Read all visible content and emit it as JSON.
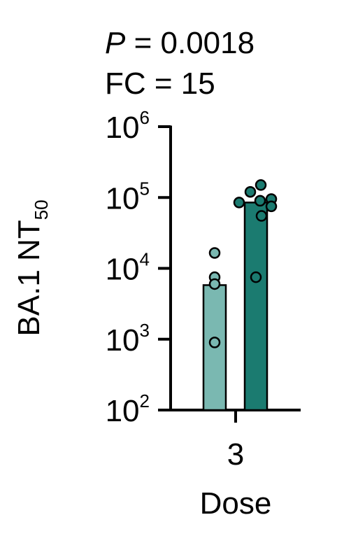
{
  "annotations": {
    "p_label": "P",
    "p_rest": "= 0.0018",
    "fc_text": "FC = 15"
  },
  "chart_data": {
    "type": "bar",
    "title": "",
    "ylabel_main": "BA.1 NT",
    "ylabel_sub": "50",
    "xlabel": "Dose",
    "categories": [
      "3"
    ],
    "y_scale": "log",
    "ylim": [
      100,
      1000000
    ],
    "y_ticks": [
      {
        "base": "10",
        "exp": "2",
        "value": 100
      },
      {
        "base": "10",
        "exp": "3",
        "value": 1000
      },
      {
        "base": "10",
        "exp": "4",
        "value": 10000
      },
      {
        "base": "10",
        "exp": "5",
        "value": 100000
      },
      {
        "base": "10",
        "exp": "6",
        "value": 1000000
      }
    ],
    "grid": false,
    "series": [
      {
        "color": "#7ab8b1",
        "bar_value": 5800,
        "points": [
          16500,
          7500,
          6000,
          900
        ]
      },
      {
        "color": "#1b7b70",
        "bar_value": 85000,
        "points": [
          150000,
          120000,
          95000,
          85000,
          90000,
          75000,
          55000,
          7500
        ]
      }
    ]
  }
}
